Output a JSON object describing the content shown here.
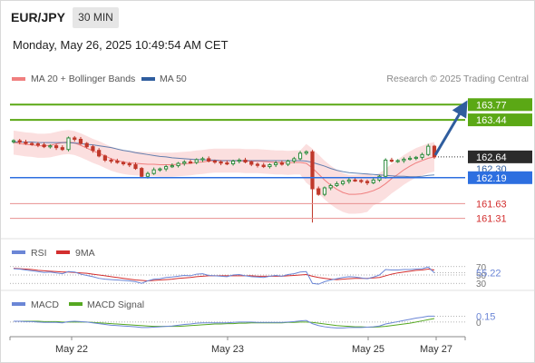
{
  "header": {
    "symbol": "EUR/JPY",
    "timeframe": "30 MIN",
    "datetime": "Monday, May 26, 2025 10:49:54 AM CET"
  },
  "main_legend": {
    "bb_label": "MA 20 + Bollinger Bands",
    "ma50_label": "MA 50",
    "credit": "Research © 2025 Trading Central"
  },
  "colors": {
    "bull": "#2e8b3d",
    "bear": "#c0392b",
    "ma20": "#f07f7f",
    "band": "#fad9d9",
    "ma50": "#2f5d9e",
    "resistance": "#5ba815",
    "support_line": "#e89090",
    "support_text": "#d32f2f",
    "pivot": "#2d6fe0",
    "arrow": "#2f5d9e",
    "rsi": "#6b86d6",
    "rsi_ma": "#d32f2f",
    "macd": "#6b86d6",
    "macd_signal": "#55a821"
  },
  "levels": {
    "r2": "163.77",
    "r1": "163.44",
    "last": "162.64",
    "pivot": "162.19",
    "pivot_hidden": "162.30",
    "s1": "161.63",
    "s2": "161.31"
  },
  "chart_data": [
    {
      "type": "candlestick",
      "title": "",
      "x_labels": [
        "May 22",
        "May 23",
        "May 25",
        "May 27"
      ],
      "ylim": [
        160.95,
        164.05
      ],
      "series": [
        {
          "name": "MA 20 + Bollinger Bands",
          "values": [
            162.95,
            162.93,
            162.91,
            162.9,
            162.88,
            162.88,
            162.89,
            162.92,
            162.95,
            162.96,
            162.94,
            162.89,
            162.83,
            162.77,
            162.72,
            162.66,
            162.6,
            162.56,
            162.53,
            162.51,
            162.5,
            162.49,
            162.48,
            162.48,
            162.47,
            162.47,
            162.47,
            162.48,
            162.49,
            162.5,
            162.52,
            162.53,
            162.55,
            162.56,
            162.56,
            162.56,
            162.56,
            162.56,
            162.55,
            162.55,
            162.55,
            162.54,
            162.53,
            162.52,
            162.52,
            162.51,
            162.52,
            162.52,
            162.5,
            162.4,
            162.27,
            162.14,
            162.03,
            161.94,
            161.87,
            161.83,
            161.83,
            161.84,
            161.87,
            161.91,
            161.97,
            162.06,
            162.17,
            162.26,
            162.36,
            162.44,
            162.51,
            162.56,
            162.61,
            162.64
          ]
        },
        {
          "name": "MA 50",
          "values": [
            162.96,
            162.96,
            162.96,
            162.96,
            162.95,
            162.95,
            162.95,
            162.95,
            162.95,
            162.95,
            162.94,
            162.93,
            162.91,
            162.9,
            162.88,
            162.86,
            162.84,
            162.81,
            162.78,
            162.76,
            162.73,
            162.71,
            162.69,
            162.67,
            162.65,
            162.64,
            162.62,
            162.61,
            162.6,
            162.59,
            162.58,
            162.58,
            162.57,
            162.57,
            162.56,
            162.56,
            162.56,
            162.56,
            162.56,
            162.56,
            162.56,
            162.56,
            162.56,
            162.56,
            162.56,
            162.56,
            162.56,
            162.56,
            162.55,
            162.52,
            162.48,
            162.44,
            162.39,
            162.35,
            162.32,
            162.3,
            162.29,
            162.28,
            162.27,
            162.26,
            162.25,
            162.24,
            162.23,
            162.22,
            162.22,
            162.21,
            162.21,
            162.22,
            162.24,
            162.25
          ]
        },
        {
          "name": "Close",
          "values": [
            162.99,
            162.96,
            162.93,
            162.92,
            162.9,
            162.86,
            162.88,
            162.84,
            162.8,
            163.05,
            163.02,
            162.93,
            162.86,
            162.78,
            162.66,
            162.57,
            162.55,
            162.52,
            162.49,
            162.47,
            162.39,
            162.22,
            162.28,
            162.36,
            162.38,
            162.43,
            162.45,
            162.5,
            162.53,
            162.52,
            162.58,
            162.6,
            162.55,
            162.53,
            162.51,
            162.49,
            162.55,
            162.57,
            162.53,
            162.48,
            162.46,
            162.43,
            162.47,
            162.51,
            162.48,
            162.55,
            162.6,
            162.72,
            162.75,
            161.95,
            161.83,
            161.97,
            162.02,
            162.06,
            162.11,
            162.14,
            162.13,
            162.11,
            162.08,
            162.14,
            162.22,
            162.57,
            162.55,
            162.56,
            162.59,
            162.61,
            162.63,
            162.69,
            162.87,
            162.64
          ]
        }
      ],
      "levels": [
        {
          "name": "resistance",
          "values": [
            163.77,
            163.44
          ]
        },
        {
          "name": "pivot",
          "values": [
            162.19
          ]
        },
        {
          "name": "support",
          "values": [
            161.63,
            161.31
          ]
        },
        {
          "name": "last",
          "values": [
            162.64
          ]
        }
      ],
      "grid": false
    },
    {
      "type": "line",
      "title": "RSI",
      "ylim": [
        24,
        76
      ],
      "ticks": [
        "70",
        "50",
        "30"
      ],
      "value_label": "55.22",
      "series": [
        {
          "name": "RSI",
          "values": [
            65,
            64,
            62,
            60,
            58,
            56,
            57,
            55,
            53,
            58,
            57,
            52,
            49,
            46,
            42,
            40,
            39,
            38,
            37,
            36,
            34,
            30,
            36,
            40,
            41,
            44,
            45,
            47,
            49,
            48,
            52,
            53,
            49,
            48,
            47,
            46,
            50,
            51,
            48,
            46,
            45,
            44,
            47,
            49,
            47,
            51,
            53,
            57,
            58,
            30,
            28,
            34,
            38,
            41,
            44,
            46,
            45,
            43,
            41,
            45,
            50,
            63,
            62,
            62,
            63,
            63,
            64,
            65,
            69,
            55.22
          ]
        },
        {
          "name": "9MA",
          "values": [
            66,
            65,
            64,
            63,
            61,
            60,
            59,
            58,
            57,
            57,
            56,
            55,
            54,
            52,
            50,
            48,
            46,
            44,
            42,
            40,
            38,
            37,
            36,
            37,
            38,
            39,
            40,
            42,
            43,
            44,
            46,
            47,
            48,
            48,
            48,
            48,
            48,
            48,
            48,
            48,
            47,
            47,
            47,
            47,
            47,
            48,
            49,
            50,
            51,
            47,
            44,
            42,
            40,
            39,
            40,
            41,
            42,
            42,
            42,
            43,
            44,
            48,
            52,
            55,
            57,
            59,
            61,
            62,
            64,
            62
          ]
        }
      ]
    },
    {
      "type": "line",
      "title": "MACD",
      "ylim": [
        -0.28,
        0.32
      ],
      "ticks": [
        "0"
      ],
      "value_label": "0.15",
      "series": [
        {
          "name": "MACD",
          "values": [
            0.02,
            0.02,
            0.01,
            0.01,
            0.0,
            -0.01,
            -0.01,
            -0.01,
            -0.02,
            0.01,
            0.02,
            0.01,
            0.0,
            -0.02,
            -0.04,
            -0.06,
            -0.08,
            -0.09,
            -0.1,
            -0.11,
            -0.12,
            -0.14,
            -0.14,
            -0.13,
            -0.12,
            -0.11,
            -0.1,
            -0.08,
            -0.06,
            -0.05,
            -0.03,
            -0.02,
            -0.02,
            -0.02,
            -0.02,
            -0.02,
            -0.01,
            0.0,
            0.0,
            0.0,
            -0.01,
            -0.01,
            -0.01,
            -0.01,
            -0.01,
            0.0,
            0.01,
            0.03,
            0.04,
            -0.04,
            -0.09,
            -0.12,
            -0.14,
            -0.15,
            -0.15,
            -0.14,
            -0.14,
            -0.14,
            -0.13,
            -0.12,
            -0.1,
            -0.05,
            -0.02,
            0.01,
            0.04,
            0.07,
            0.1,
            0.12,
            0.15,
            0.15
          ]
        },
        {
          "name": "MACD Signal",
          "values": [
            0.02,
            0.02,
            0.02,
            0.02,
            0.02,
            0.01,
            0.01,
            0.01,
            0.0,
            0.0,
            0.0,
            0.0,
            0.0,
            -0.01,
            -0.02,
            -0.03,
            -0.04,
            -0.05,
            -0.06,
            -0.07,
            -0.08,
            -0.09,
            -0.1,
            -0.11,
            -0.11,
            -0.11,
            -0.11,
            -0.11,
            -0.1,
            -0.09,
            -0.08,
            -0.07,
            -0.06,
            -0.05,
            -0.05,
            -0.04,
            -0.04,
            -0.03,
            -0.03,
            -0.02,
            -0.02,
            -0.02,
            -0.02,
            -0.02,
            -0.02,
            -0.01,
            -0.01,
            0.0,
            0.0,
            -0.01,
            -0.03,
            -0.05,
            -0.07,
            -0.09,
            -0.1,
            -0.11,
            -0.12,
            -0.12,
            -0.13,
            -0.13,
            -0.12,
            -0.11,
            -0.09,
            -0.07,
            -0.05,
            -0.03,
            0.0,
            0.03,
            0.06,
            0.09
          ]
        }
      ]
    }
  ],
  "rsi_legend": {
    "rsi": "RSI",
    "ma": "9MA"
  },
  "macd_legend": {
    "macd": "MACD",
    "signal": "MACD Signal"
  }
}
